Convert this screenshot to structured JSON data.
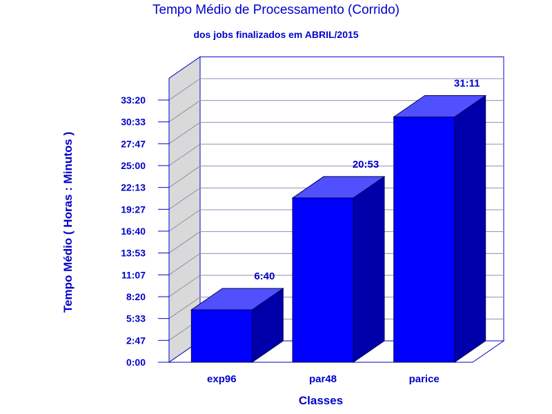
{
  "chart_data": {
    "type": "bar",
    "title": "Tempo Médio de Processamento (Corrido)",
    "subtitle": "dos jobs finalizados em ABRIL/2015",
    "xlabel": "Classes",
    "ylabel": "Tempo Médio ( Horas : Minutos )",
    "categories": [
      "exp96",
      "par48",
      "parice"
    ],
    "values": [
      6.667,
      20.883,
      31.183
    ],
    "value_labels": [
      "6:40",
      "20:53",
      "31:11"
    ],
    "ylim": [
      0,
      36.11
    ],
    "yticks": [
      0,
      2.778,
      5.556,
      8.333,
      11.111,
      13.889,
      16.667,
      19.444,
      22.222,
      25.0,
      27.778,
      30.556,
      33.333
    ],
    "ytick_labels": [
      "0:00",
      "2:47",
      "5:33",
      "8:20",
      "11:07",
      "13:53",
      "16:40",
      "19:27",
      "22:13",
      "25:00",
      "27:47",
      "30:33",
      "33:20"
    ],
    "grid": true,
    "style": "3d",
    "colors": {
      "bar_front": "#0000ff",
      "bar_top": "#5050ff",
      "bar_side": "#0000aa",
      "wall": "#d9d9d9",
      "text": "#0000cc",
      "axis": "#0000cc"
    }
  }
}
